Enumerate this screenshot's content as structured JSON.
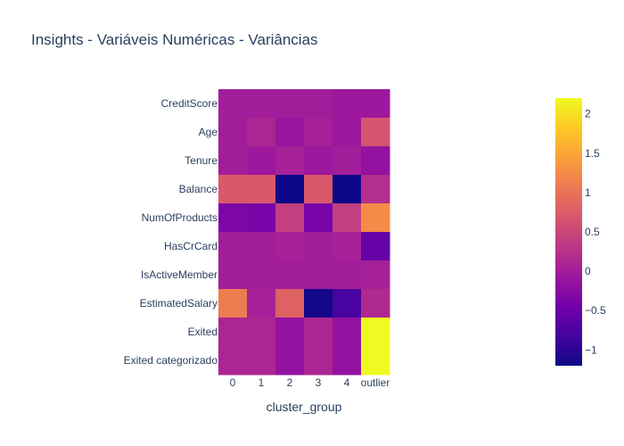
{
  "chart_data": {
    "type": "heatmap",
    "title": "Insights - Variáveis Numéricas - Variâncias",
    "xlabel": "cluster_group",
    "ylabel": "",
    "x": [
      "0",
      "1",
      "2",
      "3",
      "4",
      "outlier"
    ],
    "y": [
      "CreditScore",
      "Age",
      "Tenure",
      "Balance",
      "NumOfProducts",
      "HasCrCard",
      "IsActiveMember",
      "EstimatedSalary",
      "Exited",
      "Exited categorizado"
    ],
    "z": [
      [
        0.0,
        0.0,
        0.0,
        0.0,
        -0.05,
        -0.05
      ],
      [
        0.0,
        0.1,
        -0.1,
        0.05,
        -0.05,
        0.65
      ],
      [
        0.0,
        -0.05,
        0.05,
        -0.05,
        0.0,
        -0.15
      ],
      [
        0.7,
        0.7,
        -1.2,
        0.7,
        -1.2,
        0.2
      ],
      [
        -0.35,
        -0.4,
        0.4,
        -0.4,
        0.4,
        1.25
      ],
      [
        0.0,
        0.0,
        0.05,
        0.0,
        0.05,
        -0.55
      ],
      [
        0.0,
        0.0,
        0.0,
        0.0,
        0.0,
        0.05
      ],
      [
        1.1,
        0.05,
        0.8,
        -1.15,
        -0.8,
        0.15
      ],
      [
        0.1,
        0.1,
        -0.15,
        0.1,
        -0.15,
        2.2
      ],
      [
        0.1,
        0.1,
        -0.15,
        0.1,
        -0.15,
        2.2
      ]
    ],
    "zmin": -1.2,
    "zmax": 2.2,
    "colorscale": [
      "#0d0887",
      "#46039f",
      "#7201a8",
      "#9c179e",
      "#bd3786",
      "#d8576b",
      "#ed7953",
      "#fb9f3a",
      "#fdca26",
      "#f0f921"
    ],
    "colorbar_ticks": [
      "2",
      "1.5",
      "1",
      "0.5",
      "0",
      "−0.5",
      "−1"
    ],
    "colorbar_tick_values": [
      2,
      1.5,
      1,
      0.5,
      0,
      -0.5,
      -1
    ]
  }
}
